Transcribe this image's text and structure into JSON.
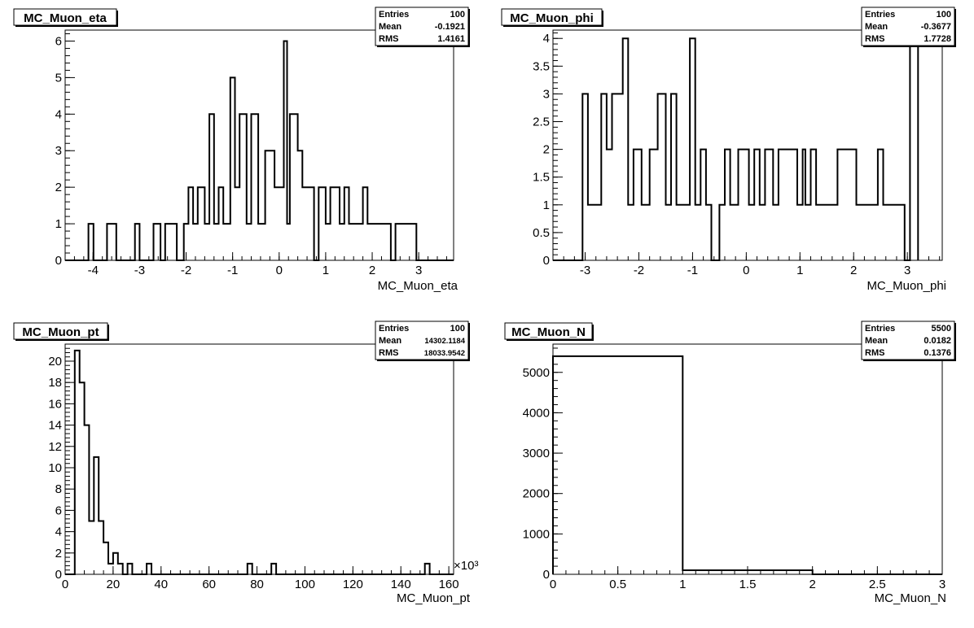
{
  "chart_data": [
    {
      "type": "bar",
      "title": "MC_Muon_eta",
      "xlabel": "MC_Muon_eta",
      "stats": [
        {
          "label": "Entries",
          "value": "100"
        },
        {
          "label": "Mean",
          "value": "-0.1921"
        },
        {
          "label": "RMS",
          "value": "1.4161"
        }
      ],
      "xlim": [
        -4.6,
        3.75
      ],
      "ylim": [
        0,
        6.3
      ],
      "x_ticks": [
        "-4",
        "-3",
        "-2",
        "-1",
        "0",
        "1",
        "2",
        "3"
      ],
      "x_tick_values": [
        -4,
        -3,
        -2,
        -1,
        0,
        1,
        2,
        3
      ],
      "y_ticks": [
        "0",
        "1",
        "2",
        "3",
        "4",
        "5",
        "6"
      ],
      "y_tick_values": [
        0,
        1,
        2,
        3,
        4,
        5,
        6
      ],
      "bin_edges": [
        -4.6,
        -4.1,
        -3.99,
        -3.7,
        -3.5,
        -3.1,
        -3.0,
        -2.7,
        -2.55,
        -2.45,
        -2.2,
        -2.05,
        -1.95,
        -1.85,
        -1.75,
        -1.6,
        -1.5,
        -1.4,
        -1.3,
        -1.2,
        -1.05,
        -0.95,
        -0.85,
        -0.7,
        -0.6,
        -0.45,
        -0.3,
        -0.1,
        0.1,
        0.17,
        0.23,
        0.4,
        0.5,
        0.75,
        0.85,
        1.0,
        1.1,
        1.3,
        1.4,
        1.5,
        1.6,
        1.8,
        1.9,
        2.0,
        2.4,
        2.5,
        2.95,
        3.05,
        3.75
      ],
      "values": [
        0,
        1,
        0,
        1,
        0,
        1,
        0,
        1,
        0,
        1,
        0,
        1,
        2,
        1,
        2,
        1,
        4,
        1,
        2,
        1,
        5,
        2,
        4,
        1,
        4,
        1,
        3,
        2,
        6,
        1,
        4,
        3,
        2,
        0,
        2,
        1,
        2,
        1,
        2,
        1,
        1,
        2,
        1,
        1,
        0,
        1,
        0,
        0
      ]
    },
    {
      "type": "bar",
      "title": "MC_Muon_phi",
      "xlabel": "MC_Muon_phi",
      "stats": [
        {
          "label": "Entries",
          "value": "100"
        },
        {
          "label": "Mean",
          "value": "-0.3677"
        },
        {
          "label": "RMS",
          "value": "1.7728"
        }
      ],
      "xlim": [
        -3.6,
        3.65
      ],
      "ylim": [
        0,
        4.15
      ],
      "x_ticks": [
        "-3",
        "-2",
        "-1",
        "0",
        "1",
        "2",
        "3"
      ],
      "x_tick_values": [
        -3,
        -2,
        -1,
        0,
        1,
        2,
        3
      ],
      "y_ticks": [
        "0",
        "0.5",
        "1",
        "1.5",
        "2",
        "2.5",
        "3",
        "3.5",
        "4"
      ],
      "y_tick_values": [
        0,
        0.5,
        1,
        1.5,
        2,
        2.5,
        3,
        3.5,
        4
      ],
      "bin_edges": [
        -3.6,
        -3.05,
        -2.95,
        -2.7,
        -2.6,
        -2.5,
        -2.3,
        -2.2,
        -2.1,
        -1.95,
        -1.8,
        -1.65,
        -1.5,
        -1.4,
        -1.3,
        -1.05,
        -0.95,
        -0.85,
        -0.75,
        -0.65,
        -0.5,
        -0.4,
        -0.3,
        -0.15,
        0.05,
        0.15,
        0.25,
        0.35,
        0.5,
        0.6,
        0.95,
        1.05,
        1.1,
        1.2,
        1.3,
        1.45,
        1.55,
        1.7,
        2.05,
        2.15,
        2.25,
        2.45,
        2.55,
        2.95,
        3.05,
        3.2
      ],
      "values": [
        0,
        3,
        1,
        3,
        2,
        3,
        4,
        1,
        2,
        1,
        2,
        3,
        1,
        3,
        1,
        4,
        1,
        2,
        1,
        0,
        1,
        2,
        1,
        2,
        1,
        2,
        1,
        2,
        1,
        2,
        1,
        2,
        1,
        2,
        1,
        1,
        1,
        2,
        1,
        1,
        1,
        2,
        1,
        0,
        4
      ]
    },
    {
      "type": "bar",
      "title": "MC_Muon_pt",
      "xlabel": "MC_Muon_pt",
      "x_scale_label": "×10³",
      "stats": [
        {
          "label": "Entries",
          "value": "100"
        },
        {
          "label": "Mean",
          "value": "14302.1184"
        },
        {
          "label": "RMS",
          "value": "18033.9542"
        }
      ],
      "xlim": [
        0,
        162
      ],
      "ylim": [
        0,
        21.6
      ],
      "x_ticks": [
        "0",
        "20",
        "40",
        "60",
        "80",
        "100",
        "120",
        "140",
        "160"
      ],
      "x_tick_values": [
        0,
        20,
        40,
        60,
        80,
        100,
        120,
        140,
        160
      ],
      "y_ticks": [
        "0",
        "2",
        "4",
        "6",
        "8",
        "10",
        "12",
        "14",
        "16",
        "18",
        "20"
      ],
      "y_tick_values": [
        0,
        2,
        4,
        6,
        8,
        10,
        12,
        14,
        16,
        18,
        20
      ],
      "bin_edges": [
        0,
        4,
        6,
        8,
        10,
        12,
        14,
        16,
        18,
        20,
        22,
        24,
        26,
        28,
        30,
        32,
        34,
        36,
        38,
        76,
        78,
        86,
        88,
        150,
        152,
        162
      ],
      "values": [
        0,
        21,
        18,
        14,
        5,
        11,
        5,
        3,
        1,
        2,
        1,
        0,
        1,
        0,
        0,
        0,
        1,
        0,
        0,
        1,
        0,
        1,
        0,
        1,
        0
      ]
    },
    {
      "type": "bar",
      "title": "MC_Muon_N",
      "xlabel": "MC_Muon_N",
      "stats": [
        {
          "label": "Entries",
          "value": "5500"
        },
        {
          "label": "Mean",
          "value": "0.0182"
        },
        {
          "label": "RMS",
          "value": "0.1376"
        }
      ],
      "xlim": [
        0,
        3
      ],
      "ylim": [
        0,
        5700
      ],
      "x_ticks": [
        "0",
        "0.5",
        "1",
        "1.5",
        "2",
        "2.5",
        "3"
      ],
      "x_tick_values": [
        0,
        0.5,
        1,
        1.5,
        2,
        2.5,
        3
      ],
      "y_ticks": [
        "0",
        "1000",
        "2000",
        "3000",
        "4000",
        "5000"
      ],
      "y_tick_values": [
        0,
        1000,
        2000,
        3000,
        4000,
        5000
      ],
      "bin_edges": [
        0,
        1,
        2,
        3
      ],
      "values": [
        5400,
        100,
        0
      ]
    }
  ]
}
